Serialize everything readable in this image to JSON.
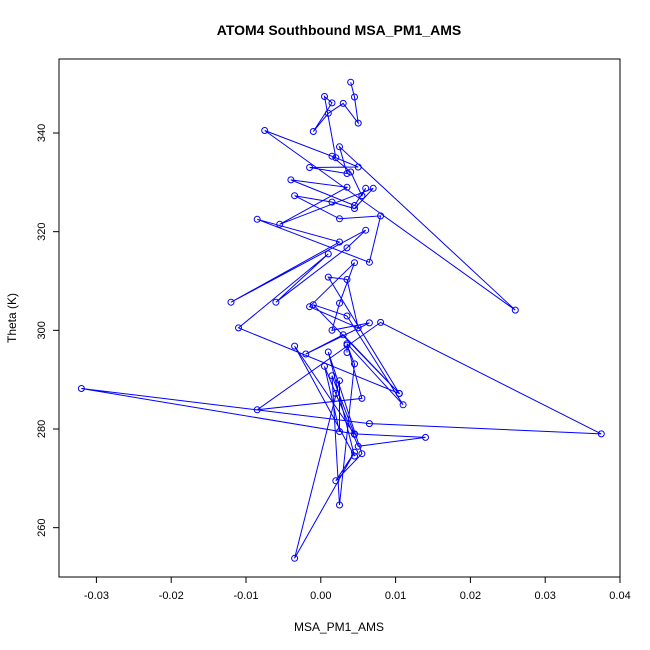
{
  "chart_data": {
    "type": "line",
    "title": "ATOM4 Southbound MSA_PM1_AMS",
    "xlabel": "MSA_PM1_AMS",
    "ylabel": "Theta (K)",
    "xlim": [
      -0.035,
      0.04
    ],
    "ylim": [
      250,
      355
    ],
    "x_ticks": [
      "-0.03",
      "-0.02",
      "-0.01",
      "0.00",
      "0.01",
      "0.02",
      "0.03",
      "0.04"
    ],
    "y_ticks": [
      "260",
      "280",
      "300",
      "320",
      "340"
    ],
    "grid": false,
    "legend": "none",
    "marker": "open-circle",
    "series_color": "#0000ff",
    "series": [
      {
        "x": [
          0.004,
          0.0045,
          0.005,
          0.003,
          0.001,
          -0.001,
          0.0015,
          0.0005,
          0.002,
          -0.0075,
          0.026,
          0.0025,
          0.0035,
          -0.0015,
          0.005,
          0.0015,
          0.004,
          0.0055,
          0.006,
          0.0045,
          -0.004,
          0.0035,
          -0.0055,
          0.007,
          0.0045,
          0.0015,
          -0.0035,
          0.0025,
          0.008,
          0.0065,
          -0.0085,
          0.0025,
          -0.012,
          0.006,
          0.0035,
          -0.006,
          0.001,
          -0.011,
          0.0105,
          0.001,
          0.0035,
          0.005,
          -0.0015,
          0.0045,
          0.0025,
          0.0015,
          0.0065,
          -0.002,
          0.003,
          0.0105,
          -0.001,
          0.0035,
          0.011,
          0.0035,
          0.0055,
          -0.0085,
          0.008,
          0.0375,
          0.0065,
          -0.032,
          0.0045,
          0.014,
          0.005,
          0.002,
          0.0005,
          0.0025,
          0.0025,
          -0.0035,
          0.0045,
          0.002,
          0.0055,
          0.001,
          0.0045,
          -0.0035,
          0.0045,
          0.0015,
          0.0025,
          0.0045,
          0.0035,
          0.0035
        ],
        "y": [
          350.3,
          347.3,
          342.0,
          346.0,
          344.0,
          340.3,
          346.1,
          347.4,
          335.0,
          340.5,
          304.1,
          337.2,
          331.8,
          333.0,
          333.1,
          335.3,
          332.1,
          327.3,
          328.8,
          325.3,
          330.5,
          329.0,
          321.5,
          328.8,
          324.7,
          326.0,
          327.3,
          322.6,
          323.2,
          313.8,
          322.5,
          317.9,
          305.7,
          320.3,
          316.7,
          305.7,
          315.5,
          300.5,
          287.2,
          310.8,
          310.3,
          300.5,
          304.8,
          313.7,
          305.5,
          300.0,
          301.5,
          295.2,
          299.1,
          287.2,
          305.2,
          302.9,
          284.9,
          297.3,
          286.2,
          283.9,
          301.6,
          279.0,
          281.1,
          288.2,
          279.0,
          278.3,
          276.5,
          287.2,
          292.7,
          279.5,
          289.8,
          253.8,
          275.3,
          269.5,
          275.0,
          295.6,
          274.5,
          296.8,
          278.9,
          290.8,
          264.6,
          293.2,
          297.0,
          295.5
        ]
      }
    ]
  }
}
